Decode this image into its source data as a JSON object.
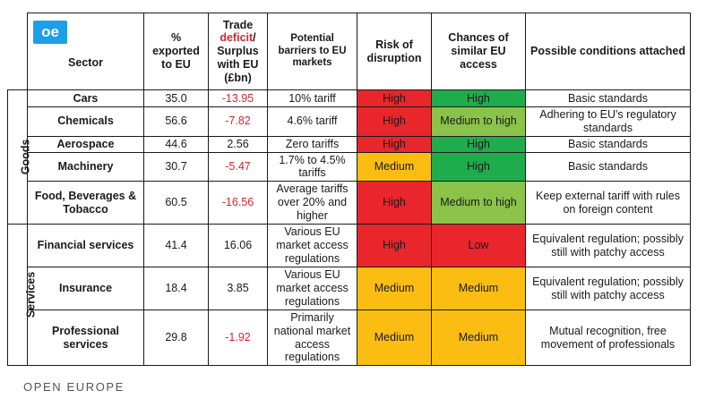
{
  "logo_text": "oe",
  "footer": "OPEN EUROPE",
  "headers": {
    "sector": "Sector",
    "exported": "% exported to EU",
    "trade_pre": "Trade ",
    "trade_red": "deficit",
    "trade_post": "/ Surplus with EU",
    "trade_unit": "(£bn)",
    "barriers": "Potential barriers to EU markets",
    "risk": "Risk of disruption",
    "chances": "Chances of similar EU access",
    "conditions": "Possible conditions attached"
  },
  "groups": {
    "goods": "Goods",
    "services": "Services"
  },
  "rows": [
    {
      "sector": "Cars",
      "exported": "35.0",
      "trade": "-13.95",
      "barriers": "10% tariff",
      "risk": "High",
      "chances": "High",
      "conditions": "Basic standards"
    },
    {
      "sector": "Chemicals",
      "exported": "56.6",
      "trade": "-7.82",
      "barriers": "4.6% tariff",
      "risk": "High",
      "chances": "Medium to high",
      "conditions": "Adhering to EU's regulatory standards"
    },
    {
      "sector": "Aerospace",
      "exported": "44.6",
      "trade": "2.56",
      "barriers": "Zero tariffs",
      "risk": "High",
      "chances": "High",
      "conditions": "Basic standards"
    },
    {
      "sector": "Machinery",
      "exported": "30.7",
      "trade": "-5.47",
      "barriers": "1.7% to 4.5% tariffs",
      "risk": "Medium",
      "chances": "High",
      "conditions": "Basic standards"
    },
    {
      "sector": "Food, Beverages & Tobacco",
      "exported": "60.5",
      "trade": "-16.56",
      "barriers": "Average tariffs over 20% and higher",
      "risk": "High",
      "chances": "Medium to high",
      "conditions": "Keep external tariff with rules on foreign content"
    },
    {
      "sector": "Financial services",
      "exported": "41.4",
      "trade": "16.06",
      "barriers": "Various EU market access regulations",
      "risk": "High",
      "chances": "Low",
      "conditions": "Equivalent regulation; possibly still with patchy access"
    },
    {
      "sector": "Insurance",
      "exported": "18.4",
      "trade": "3.85",
      "barriers": "Various EU market access regulations",
      "risk": "Medium",
      "chances": "Medium",
      "conditions": "Equivalent regulation; possibly still with patchy access"
    },
    {
      "sector": "Professional services",
      "exported": "29.8",
      "trade": "-1.92",
      "barriers": "Primarily national market access regulations",
      "risk": "Medium",
      "chances": "Medium",
      "conditions": "Mutual recognition, free movement of professionals"
    }
  ],
  "colors": {
    "high_red": "#e8262b",
    "high_green": "#1fac4c",
    "medium_to_high": "#8bc34a",
    "medium_amber": "#fbbd12",
    "negative_text": "#d9262c",
    "logo": "#1d9ee8"
  }
}
